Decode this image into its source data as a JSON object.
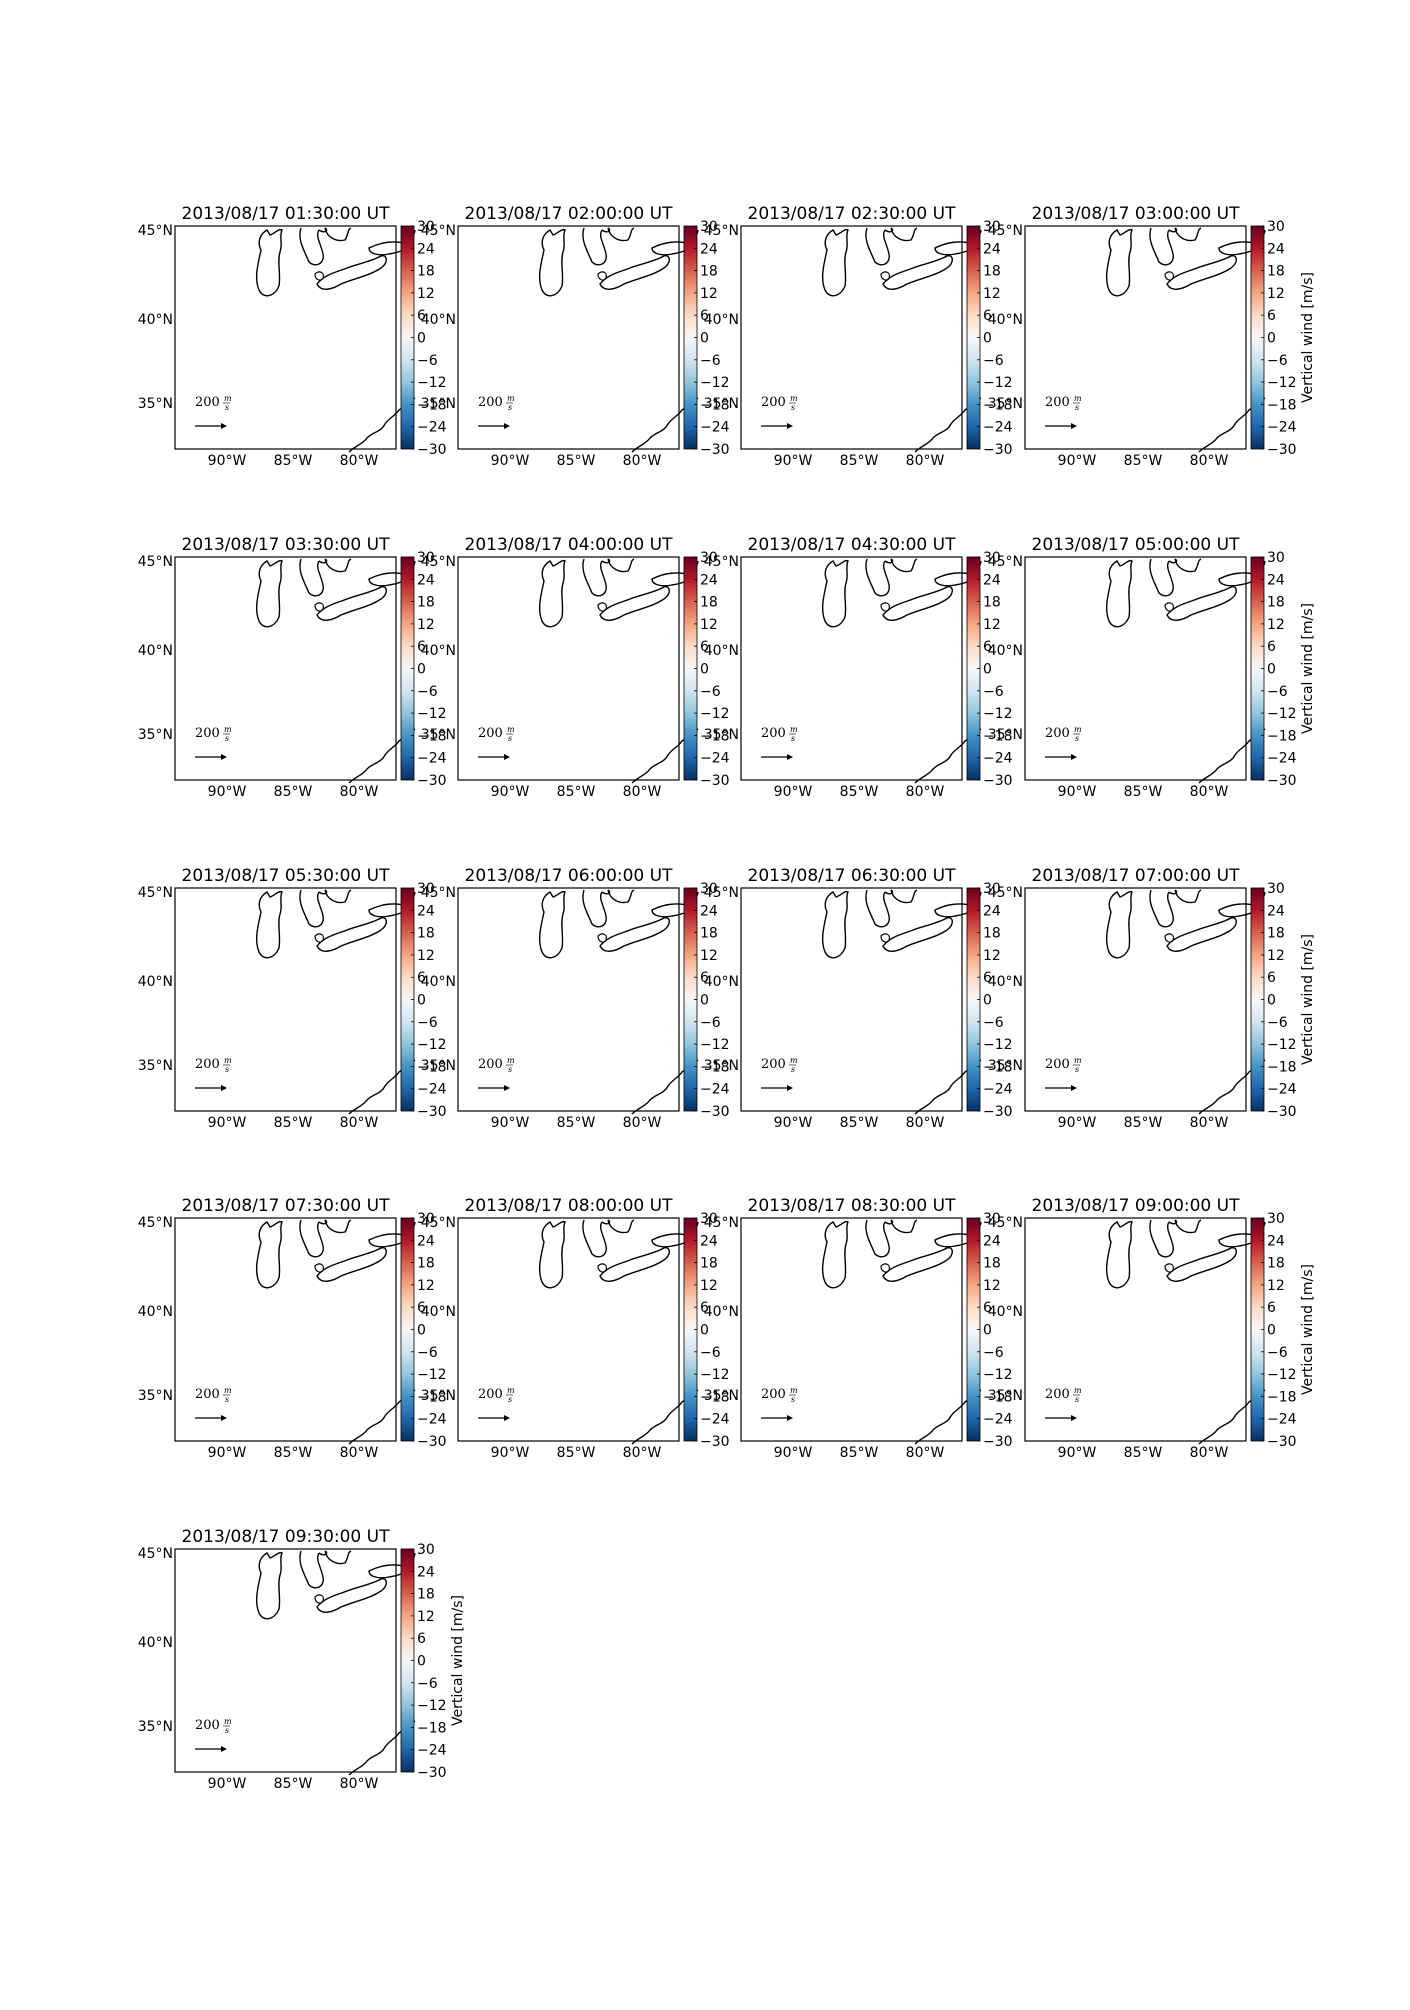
{
  "figure": {
    "panels": [
      {
        "title": "2013/08/17 01:30:00 UT",
        "show_cbar_label": false
      },
      {
        "title": "2013/08/17 02:00:00 UT",
        "show_cbar_label": false
      },
      {
        "title": "2013/08/17 02:30:00 UT",
        "show_cbar_label": false
      },
      {
        "title": "2013/08/17 03:00:00 UT",
        "show_cbar_label": true
      },
      {
        "title": "2013/08/17 03:30:00 UT",
        "show_cbar_label": false
      },
      {
        "title": "2013/08/17 04:00:00 UT",
        "show_cbar_label": false
      },
      {
        "title": "2013/08/17 04:30:00 UT",
        "show_cbar_label": false
      },
      {
        "title": "2013/08/17 05:00:00 UT",
        "show_cbar_label": true
      },
      {
        "title": "2013/08/17 05:30:00 UT",
        "show_cbar_label": false
      },
      {
        "title": "2013/08/17 06:00:00 UT",
        "show_cbar_label": false
      },
      {
        "title": "2013/08/17 06:30:00 UT",
        "show_cbar_label": false
      },
      {
        "title": "2013/08/17 07:00:00 UT",
        "show_cbar_label": true
      },
      {
        "title": "2013/08/17 07:30:00 UT",
        "show_cbar_label": false
      },
      {
        "title": "2013/08/17 08:00:00 UT",
        "show_cbar_label": false
      },
      {
        "title": "2013/08/17 08:30:00 UT",
        "show_cbar_label": false
      },
      {
        "title": "2013/08/17 09:00:00 UT",
        "show_cbar_label": true
      },
      {
        "title": "2013/08/17 09:30:00 UT",
        "show_cbar_label": true
      }
    ],
    "lon_ticks": [
      "90°W",
      "85°W",
      "80°W"
    ],
    "lat_ticks": [
      "45°N",
      "40°N",
      "35°N"
    ],
    "quiver_key": {
      "value": "200",
      "unit_num": "m",
      "unit_den": "s"
    },
    "colorbar": {
      "label": "Vertical wind [m/s]",
      "min": -30,
      "max": 30,
      "ticks": [
        "30",
        "24",
        "18",
        "12",
        "6",
        "0",
        "−6",
        "−12",
        "−18",
        "−24",
        "−30"
      ],
      "colors": [
        "#67001f",
        "#b2182b",
        "#d6604d",
        "#f4a582",
        "#fddbc7",
        "#f7f7f7",
        "#d1e5f0",
        "#92c5de",
        "#4393c3",
        "#2166ac",
        "#053061"
      ]
    }
  }
}
